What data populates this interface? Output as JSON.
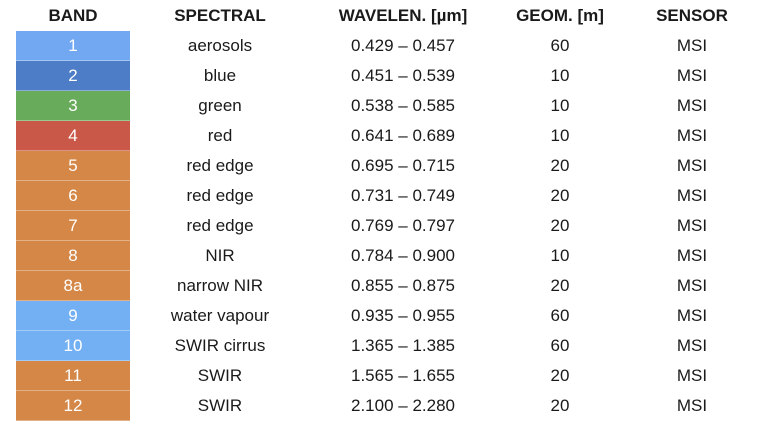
{
  "headers": {
    "band": "BAND",
    "spectral": "SPECTRAL",
    "wavelength": "WAVELEN. [µm]",
    "geom": "GEOM. [m]",
    "sensor": "SENSOR"
  },
  "colors": {
    "aerosol_blue": "#72a8f2",
    "blue": "#4d7dc7",
    "green": "#67ab5b",
    "red": "#c95848",
    "orange": "#d48747",
    "light_blue": "#72b0f3"
  },
  "rows": [
    {
      "band": "1",
      "spectral": "aerosols",
      "wavelength": "0.429 – 0.457",
      "geom": "60",
      "sensor": "MSI",
      "color": "#72a8f2"
    },
    {
      "band": "2",
      "spectral": "blue",
      "wavelength": "0.451 – 0.539",
      "geom": "10",
      "sensor": "MSI",
      "color": "#4d7dc7"
    },
    {
      "band": "3",
      "spectral": "green",
      "wavelength": "0.538 – 0.585",
      "geom": "10",
      "sensor": "MSI",
      "color": "#67ab5b"
    },
    {
      "band": "4",
      "spectral": "red",
      "wavelength": "0.641 – 0.689",
      "geom": "10",
      "sensor": "MSI",
      "color": "#c95848"
    },
    {
      "band": "5",
      "spectral": "red edge",
      "wavelength": "0.695 – 0.715",
      "geom": "20",
      "sensor": "MSI",
      "color": "#d48747"
    },
    {
      "band": "6",
      "spectral": "red edge",
      "wavelength": "0.731 – 0.749",
      "geom": "20",
      "sensor": "MSI",
      "color": "#d48747"
    },
    {
      "band": "7",
      "spectral": "red edge",
      "wavelength": "0.769 – 0.797",
      "geom": "20",
      "sensor": "MSI",
      "color": "#d48747"
    },
    {
      "band": "8",
      "spectral": "NIR",
      "wavelength": "0.784 – 0.900",
      "geom": "10",
      "sensor": "MSI",
      "color": "#d48747"
    },
    {
      "band": "8a",
      "spectral": "narrow NIR",
      "wavelength": "0.855 – 0.875",
      "geom": "20",
      "sensor": "MSI",
      "color": "#d48747"
    },
    {
      "band": "9",
      "spectral": "water vapour",
      "wavelength": "0.935 – 0.955",
      "geom": "60",
      "sensor": "MSI",
      "color": "#72b0f3"
    },
    {
      "band": "10",
      "spectral": "SWIR cirrus",
      "wavelength": "1.365 – 1.385",
      "geom": "60",
      "sensor": "MSI",
      "color": "#72b0f3"
    },
    {
      "band": "11",
      "spectral": "SWIR",
      "wavelength": "1.565 – 1.655",
      "geom": "20",
      "sensor": "MSI",
      "color": "#d48747"
    },
    {
      "band": "12",
      "spectral": "SWIR",
      "wavelength": "2.100 – 2.280",
      "geom": "20",
      "sensor": "MSI",
      "color": "#d48747"
    }
  ]
}
